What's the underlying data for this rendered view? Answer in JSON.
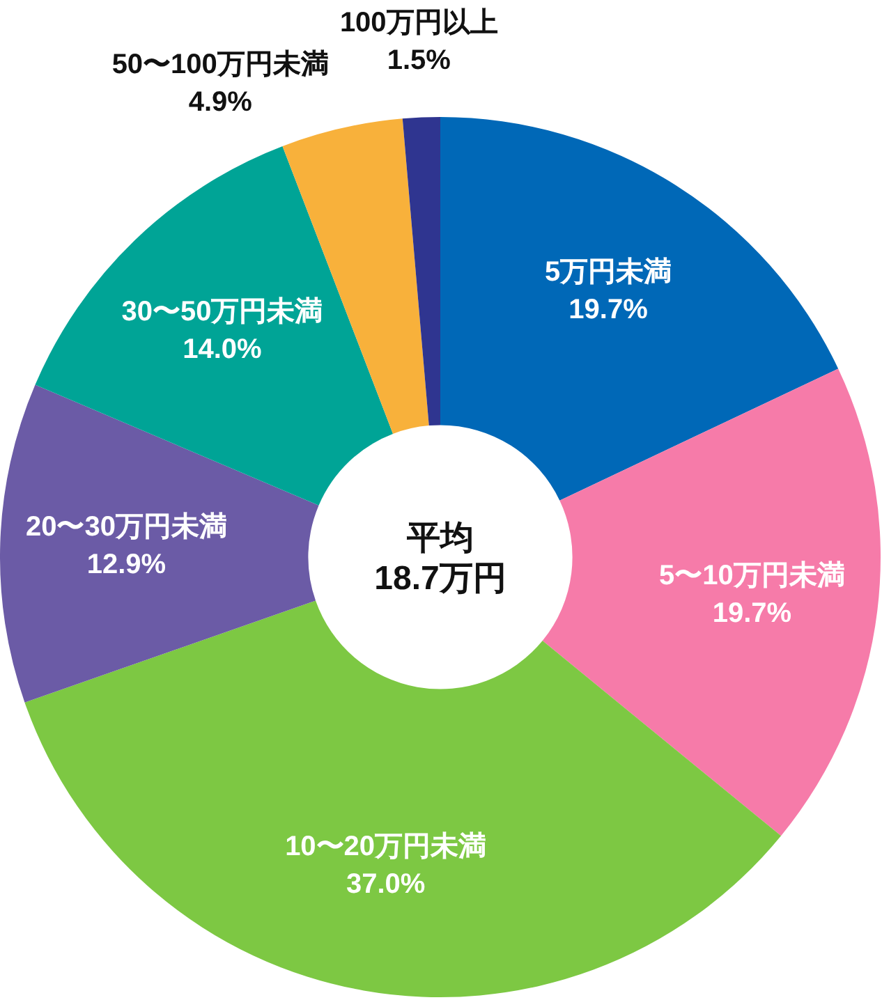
{
  "chart_data": {
    "type": "donut",
    "categories": [
      "5万円未満",
      "5〜10万円未満",
      "10〜20万円未満",
      "20〜30万円未満",
      "30〜50万円未満",
      "50〜100万円未満",
      "100万円以上"
    ],
    "values": [
      19.7,
      19.7,
      37.0,
      12.9,
      14.0,
      4.9,
      1.5
    ],
    "value_labels": [
      "19.7%",
      "19.7%",
      "37.0%",
      "12.9%",
      "14.0%",
      "4.9%",
      "1.5%"
    ],
    "colors": [
      "#0068b7",
      "#f67ba9",
      "#7dc843",
      "#6b5ba6",
      "#00a496",
      "#f8b13b",
      "#2f3590"
    ],
    "annotations": [
      "平均",
      "18.7万円"
    ]
  }
}
